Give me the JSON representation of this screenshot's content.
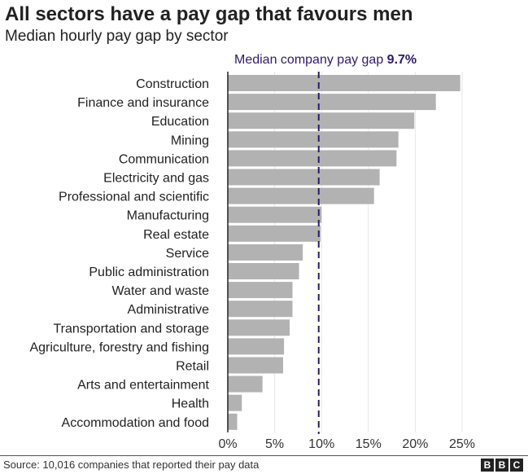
{
  "title": "All sectors have a pay gap that favours men",
  "subtitle": "Median hourly pay gap by sector",
  "source": "Source: 10,016 companies that reported their pay data",
  "logo": "BBC",
  "colors": {
    "bar": "#b2b2b2",
    "reference_line": "#2e1a6b",
    "text": "#222222"
  },
  "chart_data": {
    "type": "bar",
    "orientation": "horizontal",
    "title": "Median hourly pay gap by sector",
    "categories": [
      "Construction",
      "Finance and insurance",
      "Education",
      "Mining",
      "Communication",
      "Electricity and gas",
      "Professional and scientific",
      "Manufacturing",
      "Real estate",
      "Service",
      "Public administration",
      "Water and waste",
      "Administrative",
      "Transportation and storage",
      "Agriculture, forestry and fishing",
      "Retail",
      "Arts and entertainment",
      "Health",
      "Accommodation and food"
    ],
    "values": [
      24.8,
      22.2,
      19.9,
      18.2,
      18.0,
      16.2,
      15.6,
      10.0,
      9.9,
      8.0,
      7.6,
      6.9,
      6.9,
      6.6,
      6.0,
      5.9,
      3.7,
      1.5,
      1.0
    ],
    "xlim": [
      0,
      25
    ],
    "xticks": [
      "0%",
      "5%",
      "10%",
      "15%",
      "20%",
      "25%"
    ],
    "xtick_values": [
      0,
      5,
      10,
      15,
      20,
      25
    ],
    "grid": true,
    "reference_line": {
      "label": "Median company pay gap",
      "value_label": "9.7%",
      "value": 9.7
    }
  }
}
